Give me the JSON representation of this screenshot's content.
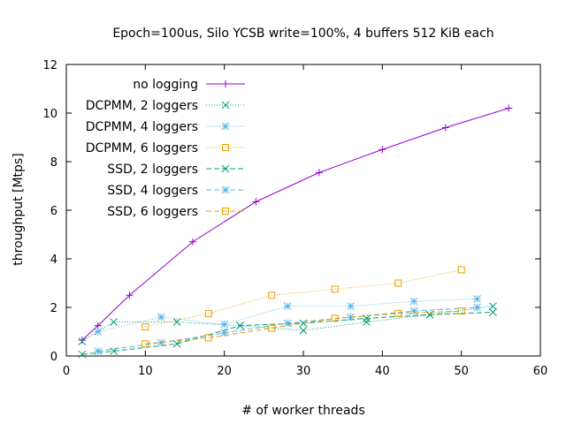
{
  "chart_data": {
    "type": "line",
    "title": "Epoch=100us, Silo YCSB write=100%, 4 buffers 512 KiB each",
    "xlabel": "# of worker threads",
    "ylabel": "throughput [Mtps]",
    "xlim": [
      0,
      60
    ],
    "ylim": [
      0,
      12
    ],
    "xticks": [
      0,
      10,
      20,
      30,
      40,
      50,
      60
    ],
    "yticks": [
      0,
      2,
      4,
      6,
      8,
      10,
      12
    ],
    "grid": false,
    "legend_position": "top-left",
    "series": [
      {
        "name": "no logging",
        "color": "#9400d3",
        "marker": "plus",
        "dash": "solid",
        "x": [
          2,
          4,
          8,
          16,
          24,
          32,
          40,
          48,
          56
        ],
        "y": [
          0.65,
          1.25,
          2.5,
          4.7,
          6.35,
          7.55,
          8.5,
          9.4,
          10.2
        ]
      },
      {
        "name": "DCPMM, 2 loggers",
        "color": "#009e73",
        "marker": "cross",
        "dash": "dotted",
        "x": [
          2,
          6,
          14,
          22,
          30,
          38,
          46,
          54
        ],
        "y": [
          0.6,
          1.4,
          1.4,
          1.25,
          1.05,
          1.4,
          1.7,
          2.05
        ]
      },
      {
        "name": "DCPMM, 4 loggers",
        "color": "#56b4e9",
        "marker": "star",
        "dash": "dotted",
        "x": [
          4,
          12,
          20,
          28,
          36,
          44,
          52
        ],
        "y": [
          1.0,
          1.6,
          1.3,
          2.05,
          2.05,
          2.25,
          2.35
        ]
      },
      {
        "name": "DCPMM, 6 loggers",
        "color": "#e69f00",
        "marker": "square",
        "dash": "dotted",
        "x": [
          10,
          18,
          26,
          34,
          42,
          50
        ],
        "y": [
          1.2,
          1.75,
          2.5,
          2.75,
          3.0,
          3.55
        ]
      },
      {
        "name": "SSD, 2 loggers",
        "color": "#009e73",
        "marker": "cross",
        "dash": "dashed",
        "x": [
          2,
          6,
          14,
          22,
          30,
          38,
          46,
          54
        ],
        "y": [
          0.07,
          0.2,
          0.5,
          1.25,
          1.35,
          1.55,
          1.7,
          1.8
        ]
      },
      {
        "name": "SSD, 4 loggers",
        "color": "#56b4e9",
        "marker": "star",
        "dash": "dashed",
        "x": [
          4,
          12,
          20,
          28,
          36,
          44,
          52
        ],
        "y": [
          0.2,
          0.55,
          0.95,
          1.35,
          1.6,
          1.85,
          2.0
        ]
      },
      {
        "name": "SSD, 6 loggers",
        "color": "#e69f00",
        "marker": "square",
        "dash": "dashed",
        "x": [
          10,
          18,
          26,
          34,
          42,
          50
        ],
        "y": [
          0.5,
          0.75,
          1.15,
          1.55,
          1.75,
          1.85
        ]
      }
    ]
  }
}
